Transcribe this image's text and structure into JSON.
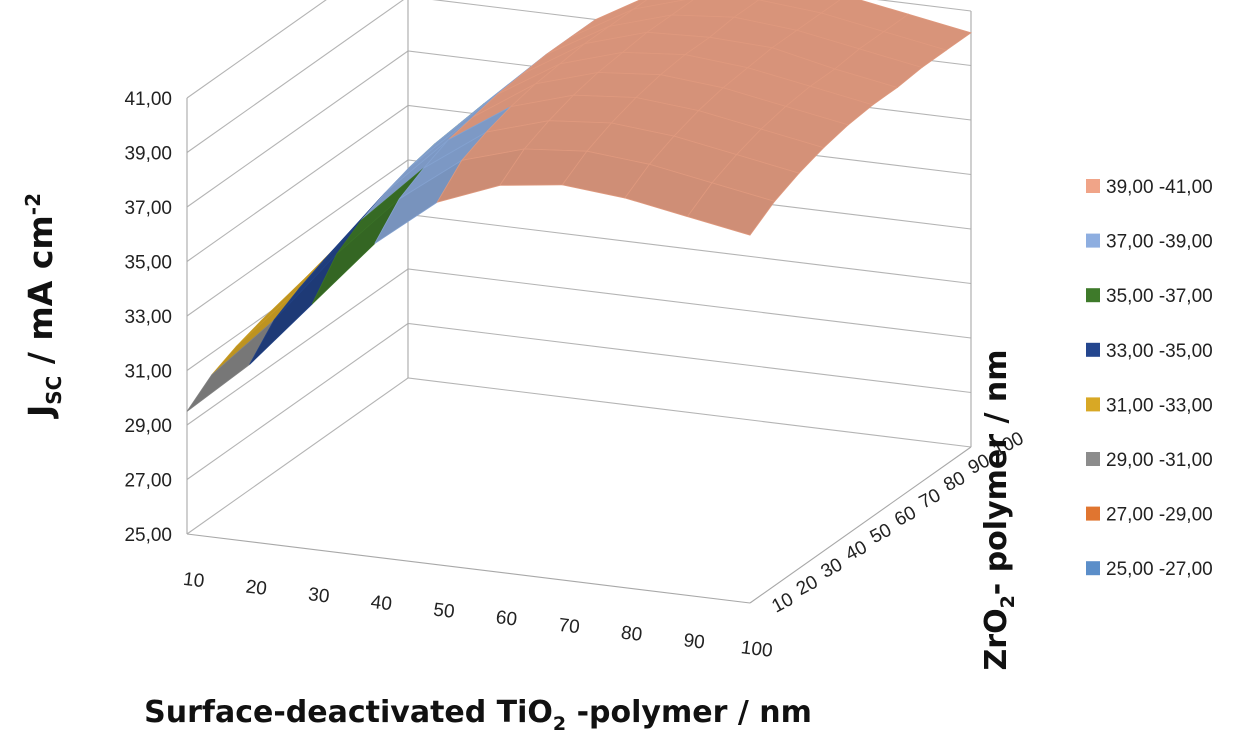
{
  "chart_data": {
    "type": "surface",
    "title": "",
    "zlabel": "J",
    "zlabel_sub": "SC",
    "zlabel_rest": " / mA cm",
    "zlabel_sup": "-2",
    "xlabel_main": "Surface-deactivated TiO",
    "xlabel_sub": "2",
    "xlabel_rest": " -polymer / nm",
    "ylabel_main": "ZrO",
    "ylabel_sub": "2",
    "ylabel_rest": "- polymer / nm",
    "x_ticks": [
      "10",
      "20",
      "30",
      "40",
      "50",
      "60",
      "70",
      "80",
      "90",
      "100"
    ],
    "y_ticks": [
      "10",
      "20",
      "30",
      "40",
      "50",
      "60",
      "70",
      "80",
      "90",
      "100"
    ],
    "z_ticks": [
      "25,00",
      "27,00",
      "29,00",
      "31,00",
      "33,00",
      "35,00",
      "37,00",
      "39,00",
      "41,00"
    ],
    "zlim": [
      25,
      41
    ],
    "x": [
      10,
      20,
      30,
      40,
      50,
      60,
      70,
      80,
      90,
      100
    ],
    "y": [
      10,
      20,
      30,
      40,
      50,
      60,
      70,
      80,
      90,
      100
    ],
    "z": [
      [
        29.5,
        30.2,
        30.6,
        30.9,
        31.1,
        31.2,
        31.3,
        31.4,
        31.5,
        31.5
      ],
      [
        31.5,
        32.5,
        33.0,
        33.4,
        33.7,
        33.9,
        34.0,
        34.1,
        34.1,
        34.2
      ],
      [
        34.0,
        35.2,
        35.8,
        36.2,
        36.5,
        36.7,
        36.8,
        36.9,
        36.9,
        37.0
      ],
      [
        36.5,
        37.5,
        38.0,
        38.4,
        38.6,
        38.8,
        38.9,
        39.0,
        39.0,
        39.0
      ],
      [
        38.3,
        39.2,
        39.6,
        39.9,
        40.1,
        40.2,
        40.3,
        40.3,
        40.3,
        40.3
      ],
      [
        39.2,
        39.9,
        40.3,
        40.6,
        40.8,
        40.9,
        41.0,
        41.0,
        41.0,
        41.0
      ],
      [
        39.5,
        40.1,
        40.5,
        40.8,
        41.0,
        41.1,
        41.1,
        41.2,
        41.2,
        41.2
      ],
      [
        39.3,
        39.9,
        40.3,
        40.6,
        40.8,
        40.9,
        41.0,
        41.0,
        41.0,
        41.0
      ],
      [
        38.9,
        39.5,
        39.9,
        40.2,
        40.4,
        40.5,
        40.5,
        40.6,
        40.6,
        40.6
      ],
      [
        38.5,
        39.1,
        39.5,
        39.8,
        40.0,
        40.1,
        40.1,
        40.2,
        40.2,
        40.2
      ]
    ],
    "legend": [
      {
        "label": "39,00 -41,00",
        "color": "#f0a488"
      },
      {
        "label": "37,00 -39,00",
        "color": "#8eaee0"
      },
      {
        "label": "35,00 -37,00",
        "color": "#3e7a2a"
      },
      {
        "label": "33,00 -35,00",
        "color": "#24468e"
      },
      {
        "label": "31,00 -33,00",
        "color": "#d8a825"
      },
      {
        "label": "29,00 -31,00",
        "color": "#8c8c8c"
      },
      {
        "label": "27,00 -29,00",
        "color": "#e07530"
      },
      {
        "label": "25,00 -27,00",
        "color": "#5b8ec9"
      }
    ],
    "legend_position": "right"
  }
}
